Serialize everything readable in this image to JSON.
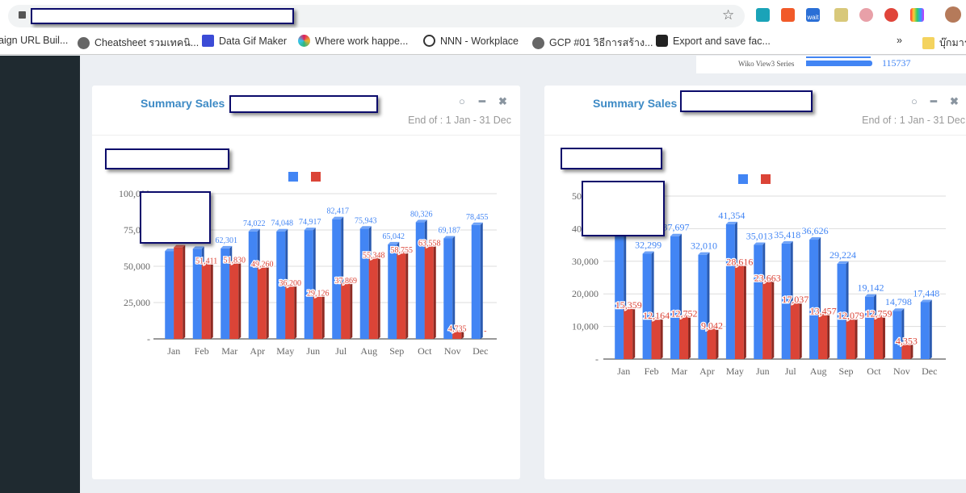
{
  "browser": {
    "bookmarks": [
      "aign URL Buil...",
      "Cheatsheet รวมเทคนิ...",
      "Data Gif Maker",
      "Where work happe...",
      "NNN - Workplace",
      "GCP #01 วิธีการสร้าง...",
      "Export and save fac...",
      "บุ๊กมาร์"
    ],
    "more": "»",
    "extension_badge": "wait"
  },
  "widget": {
    "label": "Wiko View3 Series",
    "value": "115737"
  },
  "colors": {
    "series1": "#4285f4",
    "series2": "#db4437",
    "title": "#3d8ac5"
  },
  "panels": [
    {
      "title": "Summary Sales",
      "end_of": "End of : 1 Jan - 31 Dec",
      "icons": [
        "circle-icon",
        "minimize-icon",
        "close-icon"
      ]
    },
    {
      "title": "Summary Sales",
      "end_of": "End of : 1 Jan - 31 Dec",
      "icons": [
        "circle-icon",
        "minimize-icon",
        "close-icon"
      ]
    }
  ],
  "chart_data": [
    {
      "type": "bar",
      "categories": [
        "Jan",
        "Feb",
        "Mar",
        "Apr",
        "May",
        "Jun",
        "Jul",
        "Aug",
        "Sep",
        "Oct",
        "Nov",
        "Dec"
      ],
      "ylim": [
        0,
        100000
      ],
      "yticks": [
        0,
        25000,
        50000,
        75000,
        100000
      ],
      "ytick_labels": [
        "-",
        "25,000",
        "50,000",
        "75,000",
        "100,000"
      ],
      "grid": true,
      "legend": "top-center",
      "series": [
        {
          "values": [
            60500,
            62000,
            62301,
            74022,
            74048,
            74917,
            82417,
            75943,
            65042,
            80326,
            69187,
            78455
          ],
          "labels": [
            "",
            "",
            "62,301",
            "74,022",
            "74,048",
            "74,917",
            "82,417",
            "75,943",
            "65,042",
            "80,326",
            "69,187",
            "78,455"
          ]
        },
        {
          "values": [
            63000,
            51411,
            51830,
            49260,
            36200,
            29126,
            37869,
            55348,
            58755,
            63558,
            4735,
            0
          ],
          "labels": [
            "",
            "51,411",
            "51,830",
            "49,260",
            "36,200",
            "29,126",
            "37,869",
            "55,348",
            "58,755",
            "63,558",
            "4,735",
            "-"
          ]
        }
      ]
    },
    {
      "type": "bar",
      "categories": [
        "Jan",
        "Feb",
        "Mar",
        "Apr",
        "May",
        "Jun",
        "Jul",
        "Aug",
        "Sep",
        "Oct",
        "Nov",
        "Dec"
      ],
      "ylim": [
        0,
        50000
      ],
      "yticks": [
        0,
        10000,
        20000,
        30000,
        40000,
        50000
      ],
      "ytick_labels": [
        "-",
        "10,000",
        "20,000",
        "30,000",
        "40,000",
        "50,000"
      ],
      "grid": true,
      "legend": "top-center",
      "series": [
        {
          "values": [
            38000,
            32299,
            37697,
            32010,
            41354,
            35013,
            35418,
            36626,
            29224,
            19142,
            14798,
            17448
          ],
          "labels": [
            "",
            "32,299",
            "37,697",
            "32,010",
            "41,354",
            "35,013",
            "35,418",
            "36,626",
            "29,224",
            "19,142",
            "14,798",
            "17,448"
          ]
        },
        {
          "values": [
            15359,
            12164,
            12752,
            9042,
            28616,
            23663,
            17037,
            13457,
            12079,
            12759,
            4353,
            0
          ],
          "labels": [
            "15,359",
            "12,164",
            "12,752",
            "9,042",
            "28,616",
            "23,663",
            "17,037",
            "13,457",
            "12,079",
            "12,759",
            "4,353",
            ""
          ]
        }
      ]
    }
  ]
}
